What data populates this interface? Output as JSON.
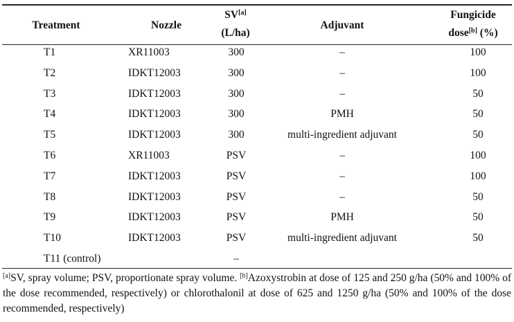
{
  "table": {
    "header": {
      "treatment": "Treatment",
      "nozzle": "Nozzle",
      "sv": {
        "text": "SV",
        "note": "[a]",
        "unit": "(L/ha)"
      },
      "adjuvant": "Adjuvant",
      "dose": {
        "line1": "Fungicide",
        "text": "dose",
        "note": "[b]",
        "unit": "(%)"
      }
    },
    "rows": [
      [
        "T1",
        "XR11003",
        300,
        "–",
        100
      ],
      [
        "T2",
        "IDKT12003",
        300,
        "–",
        100
      ],
      [
        "T3",
        "IDKT12003",
        300,
        "–",
        50
      ],
      [
        "T4",
        "IDKT12003",
        300,
        "PMH",
        50
      ],
      [
        "T5",
        "IDKT12003",
        300,
        "multi-ingredient adjuvant",
        50
      ],
      [
        "T6",
        "XR11003",
        "PSV",
        "–",
        100
      ],
      [
        "T7",
        "IDKT12003",
        "PSV",
        "–",
        100
      ],
      [
        "T8",
        "IDKT12003",
        "PSV",
        "–",
        50
      ],
      [
        "T9",
        "IDKT12003",
        "PSV",
        "PMH",
        50
      ],
      [
        "T10",
        "IDKT12003",
        "PSV",
        "multi-ingredient adjuvant",
        50
      ],
      [
        "T11 (control)",
        null,
        "–",
        null,
        null
      ]
    ]
  },
  "footnote": {
    "a_mark": "[a]",
    "a_text": "SV, spray volume; PSV, proportionate spray volume. ",
    "b_mark": "[b]",
    "b_text": "Azoxystrobin at dose of 125 and 250 g/ha (50% and 100% of the dose recommended, respectively) or chlorothalonil at dose of 625 and 1250 g/ha (50% and 100% of the dose recommended, respectively)"
  }
}
